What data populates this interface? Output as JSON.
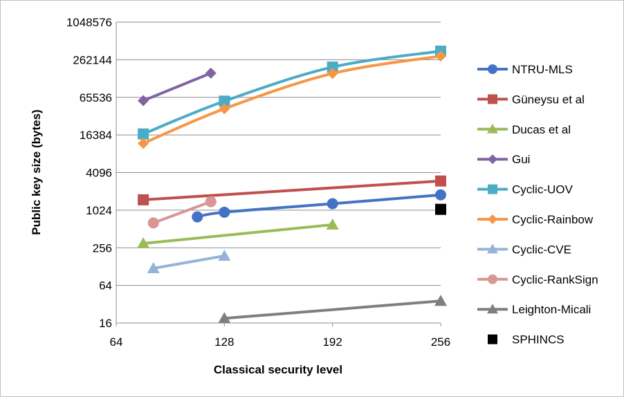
{
  "chart_data": {
    "type": "line",
    "xlabel": "Classical security level",
    "ylabel": "Public key size (bytes)",
    "x_ticks": [
      64,
      128,
      192,
      256
    ],
    "y_ticks": [
      16,
      64,
      256,
      1024,
      4096,
      16384,
      65536,
      262144,
      1048576
    ],
    "xlim": [
      64,
      256
    ],
    "ylim": [
      16,
      1048576
    ],
    "y_scale": "log",
    "grid": "horizontal",
    "legend_position": "right",
    "series": [
      {
        "name": "NTRU-MLS",
        "color": "#4472C4",
        "marker": "circle",
        "points": [
          [
            112,
            800
          ],
          [
            128,
            950
          ],
          [
            192,
            1300
          ],
          [
            256,
            1800
          ]
        ]
      },
      {
        "name": "Güneysu et al",
        "color": "#C0504D",
        "marker": "square",
        "points": [
          [
            80,
            1500
          ],
          [
            256,
            3000
          ]
        ]
      },
      {
        "name": "Ducas et al",
        "color": "#9BBB59",
        "marker": "triangle",
        "points": [
          [
            80,
            300
          ],
          [
            192,
            600
          ]
        ]
      },
      {
        "name": "Gui",
        "color": "#8064A2",
        "marker": "diamond",
        "points": [
          [
            80,
            58000
          ],
          [
            120,
            160000
          ]
        ]
      },
      {
        "name": "Cyclic-UOV",
        "color": "#4BACC6",
        "marker": "square",
        "points": [
          [
            80,
            17000
          ],
          [
            128,
            57000
          ],
          [
            192,
            200000
          ],
          [
            256,
            360000
          ]
        ]
      },
      {
        "name": "Cyclic-Rainbow",
        "color": "#F79646",
        "marker": "diamond",
        "points": [
          [
            80,
            12000
          ],
          [
            128,
            43000
          ],
          [
            192,
            158000
          ],
          [
            256,
            300000
          ]
        ]
      },
      {
        "name": "Cyclic-CVE",
        "color": "#95B3D7",
        "marker": "triangle",
        "points": [
          [
            86,
            120
          ],
          [
            128,
            190
          ]
        ]
      },
      {
        "name": "Cyclic-RankSign",
        "color": "#D99694",
        "marker": "circle",
        "points": [
          [
            86,
            640
          ],
          [
            120,
            1400
          ]
        ]
      },
      {
        "name": "Leighton-Micali",
        "color": "#7F7F7F",
        "marker": "triangle",
        "points": [
          [
            128,
            19
          ],
          [
            256,
            36
          ]
        ]
      },
      {
        "name": "SPHINCS",
        "color": "#000000",
        "marker": "square",
        "line": false,
        "points": [
          [
            256,
            1056
          ]
        ]
      }
    ]
  }
}
